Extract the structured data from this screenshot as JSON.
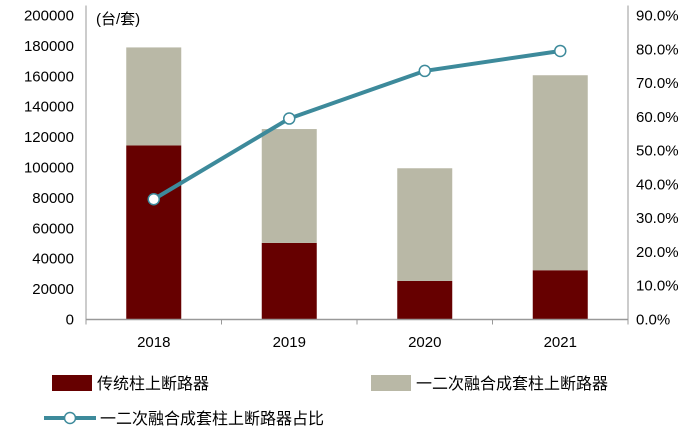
{
  "chart_data": {
    "type": "bar",
    "stacked": true,
    "categories": [
      "2018",
      "2019",
      "2020",
      "2021"
    ],
    "unit_label": "(台/套)",
    "series": [
      {
        "name": "传统柱上断路器",
        "type": "bar",
        "axis": "left",
        "color": "#660000",
        "values": [
          114500,
          50400,
          25400,
          32400
        ]
      },
      {
        "name": "一二次融合成套柱上断路器",
        "type": "bar",
        "axis": "left",
        "color": "#B9B8A6",
        "values": [
          64500,
          74900,
          74100,
          128300
        ]
      },
      {
        "name": "一二次融合成套柱上断路器占比",
        "type": "line",
        "axis": "right",
        "color": "#3D8A9B",
        "values": [
          35.6,
          59.5,
          73.6,
          79.5
        ]
      }
    ],
    "left_axis": {
      "ylim": [
        0,
        200000
      ],
      "ticks": [
        "0",
        "20000",
        "40000",
        "60000",
        "80000",
        "100000",
        "120000",
        "140000",
        "160000",
        "180000",
        "200000"
      ]
    },
    "right_axis": {
      "ylim": [
        0,
        90
      ],
      "ticks": [
        "0.0%",
        "10.0%",
        "20.0%",
        "30.0%",
        "40.0%",
        "50.0%",
        "60.0%",
        "70.0%",
        "80.0%",
        "90.0%"
      ]
    },
    "grid": false,
    "legend": "bottom"
  }
}
